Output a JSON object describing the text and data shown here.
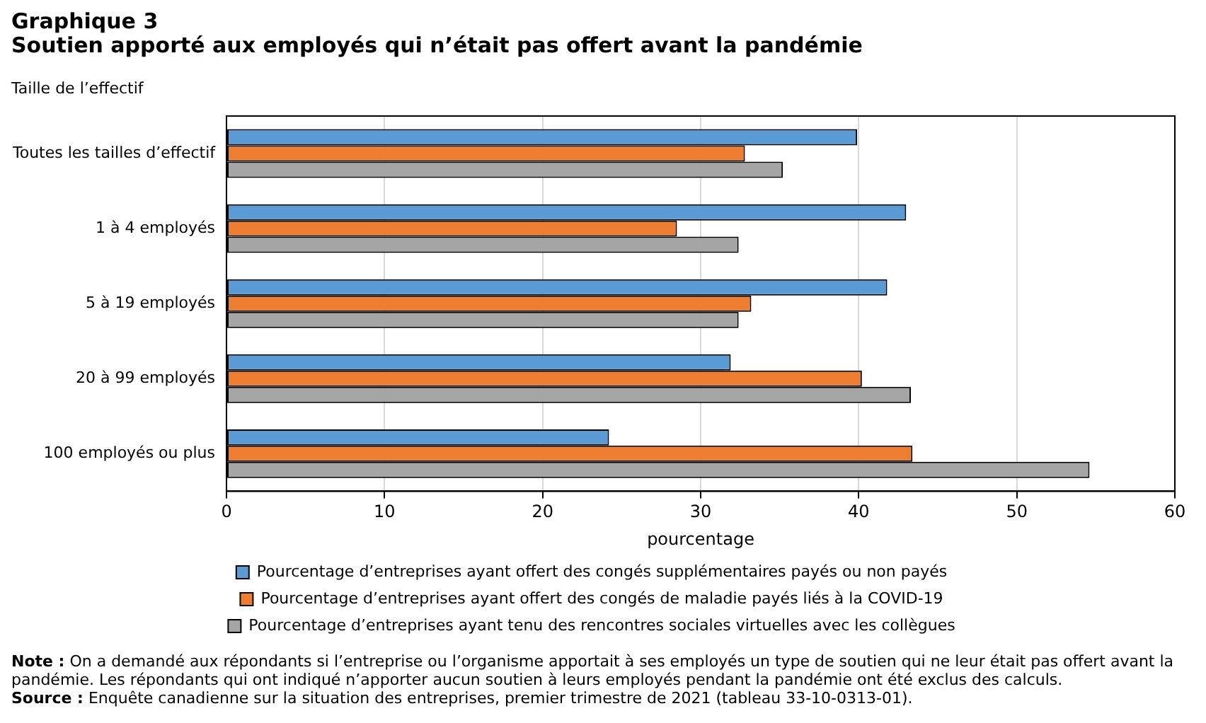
{
  "chart_data": {
    "type": "bar",
    "orientation": "horizontal",
    "title": "Graphique 3",
    "subtitle": "Soutien apporté aux employés qui n’était pas offert avant la pandémie",
    "ylabel": "Taille de l’effectif",
    "xlabel": "pourcentage",
    "categories": [
      "Toutes les tailles d’effectif",
      "1 à 4 employés",
      "5 à 19 employés",
      "20 à 99 employés",
      "100 employés ou plus"
    ],
    "series": [
      {
        "name": "Pourcentage d’entreprises ayant offert des congés supplémentaires payés ou non payés",
        "color": "#5b9bd5",
        "values": [
          39.9,
          43.0,
          41.8,
          31.9,
          24.2
        ]
      },
      {
        "name": "Pourcentage d’entreprises ayant offert des congés de maladie payés liés à la COVID-19",
        "color": "#ed7d31",
        "values": [
          32.8,
          28.5,
          33.2,
          40.2,
          43.4
        ]
      },
      {
        "name": "Pourcentage d’entreprises ayant tenu des rencontres sociales virtuelles avec les collègues",
        "color": "#a5a5a5",
        "values": [
          35.2,
          32.4,
          32.4,
          43.3,
          54.6
        ]
      }
    ],
    "xlim": [
      0,
      60
    ],
    "xticks": [
      0,
      10,
      20,
      30,
      40,
      50,
      60
    ],
    "grid": "x",
    "legend": "bottom",
    "annotations": [
      "Note : On a demandé aux répondants si l’entreprise ou l’organisme apportait à ses employés un type de soutien qui ne leur était pas offert avant la pandémie. Les répondants qui ont indiqué n’apporter aucun soutien à leurs employés pendant la pandémie ont été exclus des calculs.",
      "Source : Enquête canadienne sur la situation des entreprises, premier trimestre de 2021 (tableau 33-10-0313-01)."
    ]
  }
}
